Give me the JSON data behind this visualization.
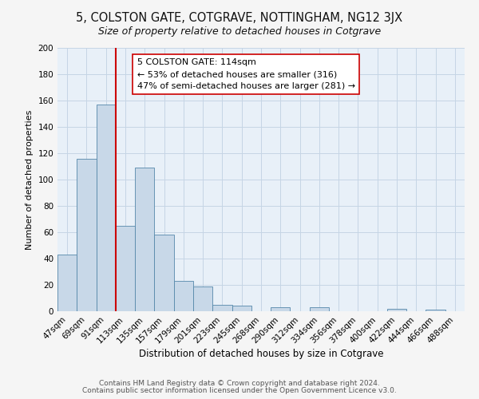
{
  "title1": "5, COLSTON GATE, COTGRAVE, NOTTINGHAM, NG12 3JX",
  "title2": "Size of property relative to detached houses in Cotgrave",
  "xlabel": "Distribution of detached houses by size in Cotgrave",
  "ylabel": "Number of detached properties",
  "bar_labels": [
    "47sqm",
    "69sqm",
    "91sqm",
    "113sqm",
    "135sqm",
    "157sqm",
    "179sqm",
    "201sqm",
    "223sqm",
    "245sqm",
    "268sqm",
    "290sqm",
    "312sqm",
    "334sqm",
    "356sqm",
    "378sqm",
    "400sqm",
    "422sqm",
    "444sqm",
    "466sqm",
    "488sqm"
  ],
  "bar_values": [
    43,
    116,
    157,
    65,
    109,
    58,
    23,
    19,
    5,
    4,
    0,
    3,
    0,
    3,
    0,
    0,
    0,
    2,
    0,
    1,
    0
  ],
  "bar_color": "#c8d8e8",
  "bar_edge_color": "#5588aa",
  "grid_color": "#c5d5e5",
  "background_color": "#e8f0f8",
  "fig_background_color": "#f5f5f5",
  "annotation_box_color": "#ffffff",
  "annotation_line_color": "#cc0000",
  "red_line_index": 3,
  "ylim": [
    0,
    200
  ],
  "yticks": [
    0,
    20,
    40,
    60,
    80,
    100,
    120,
    140,
    160,
    180,
    200
  ],
  "annotation_title": "5 COLSTON GATE: 114sqm",
  "annotation_line1": "← 53% of detached houses are smaller (316)",
  "annotation_line2": "47% of semi-detached houses are larger (281) →",
  "footer1": "Contains HM Land Registry data © Crown copyright and database right 2024.",
  "footer2": "Contains public sector information licensed under the Open Government Licence v3.0.",
  "title1_fontsize": 10.5,
  "title2_fontsize": 9,
  "annotation_fontsize": 8,
  "footer_fontsize": 6.5,
  "xlabel_fontsize": 8.5,
  "ylabel_fontsize": 8,
  "tick_fontsize": 7.5
}
